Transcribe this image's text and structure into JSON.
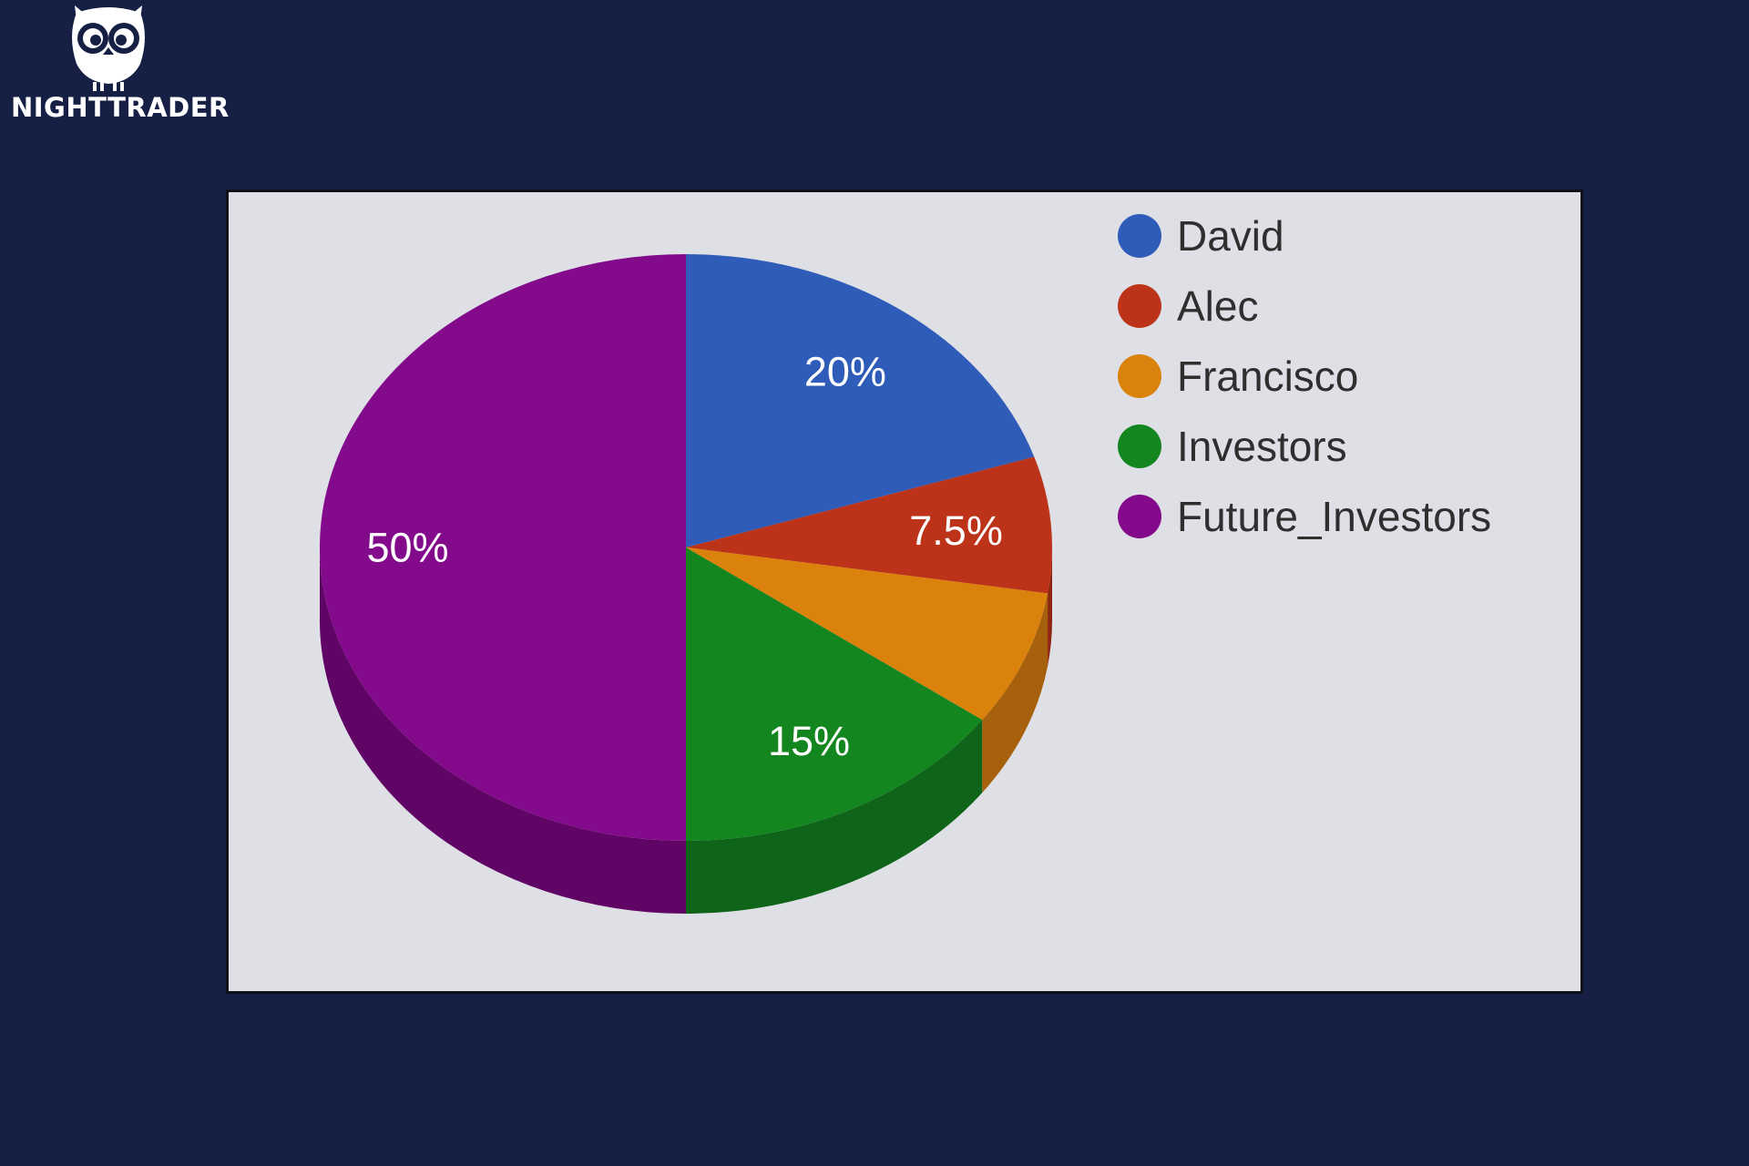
{
  "brand": {
    "name": "NIGHTTRADER",
    "logo_icon": "owl-icon"
  },
  "chart_data": {
    "type": "pie",
    "style": "3d",
    "title": "",
    "categories": [
      "David",
      "Alec",
      "Francisco",
      "Investors",
      "Future_Investors"
    ],
    "values": [
      20,
      7.5,
      7.5,
      15,
      50
    ],
    "labels": [
      "20%",
      "7.5%",
      "",
      "15%",
      "50%"
    ],
    "colors": [
      "#2f5cb8",
      "#bc3319",
      "#da820c",
      "#148620",
      "#830a8a"
    ],
    "side_colors": [
      "#244a93",
      "#8f2612",
      "#a7600c",
      "#0e6519",
      "#600566"
    ],
    "legend_position": "right",
    "legend_icon": "circle"
  }
}
